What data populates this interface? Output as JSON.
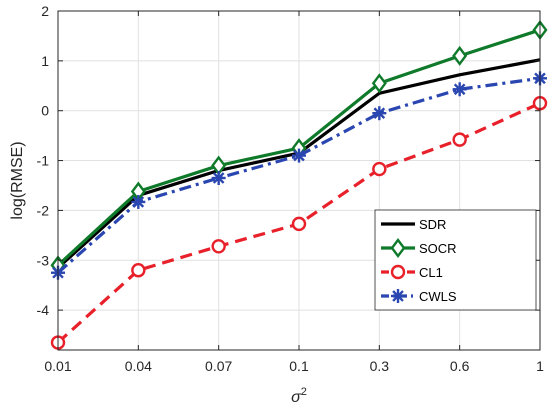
{
  "chart_data": {
    "type": "line",
    "title": "",
    "xlabel": "σ",
    "xlabel_superscript": "2",
    "ylabel": "log(RMSE)",
    "categories": [
      "0.01",
      "0.04",
      "0.07",
      "0.1",
      "0.3",
      "0.6",
      "1"
    ],
    "ylim": [
      -4.8,
      2
    ],
    "yticks": [
      "-4",
      "-3",
      "-2",
      "-1",
      "0",
      "1",
      "2"
    ],
    "grid": true,
    "legend_position": "bottom-right",
    "series": [
      {
        "name": "SDR",
        "color": "#000000",
        "dash": "solid",
        "marker": "none",
        "values": [
          -3.15,
          -1.7,
          -1.2,
          -0.85,
          0.35,
          0.72,
          1.02
        ]
      },
      {
        "name": "SOCR",
        "color": "#0f7a2a",
        "dash": "solid",
        "marker": "diamond",
        "values": [
          -3.1,
          -1.62,
          -1.1,
          -0.75,
          0.55,
          1.1,
          1.62
        ]
      },
      {
        "name": "CL1",
        "color": "#e8202a",
        "dash": "dashed",
        "marker": "circle",
        "values": [
          -4.65,
          -3.2,
          -2.72,
          -2.27,
          -1.17,
          -0.58,
          0.15
        ]
      },
      {
        "name": "CWLS",
        "color": "#2a46b0",
        "dash": "dash-dot",
        "marker": "asterisk",
        "values": [
          -3.25,
          -1.83,
          -1.35,
          -0.9,
          -0.05,
          0.43,
          0.65
        ]
      }
    ]
  }
}
